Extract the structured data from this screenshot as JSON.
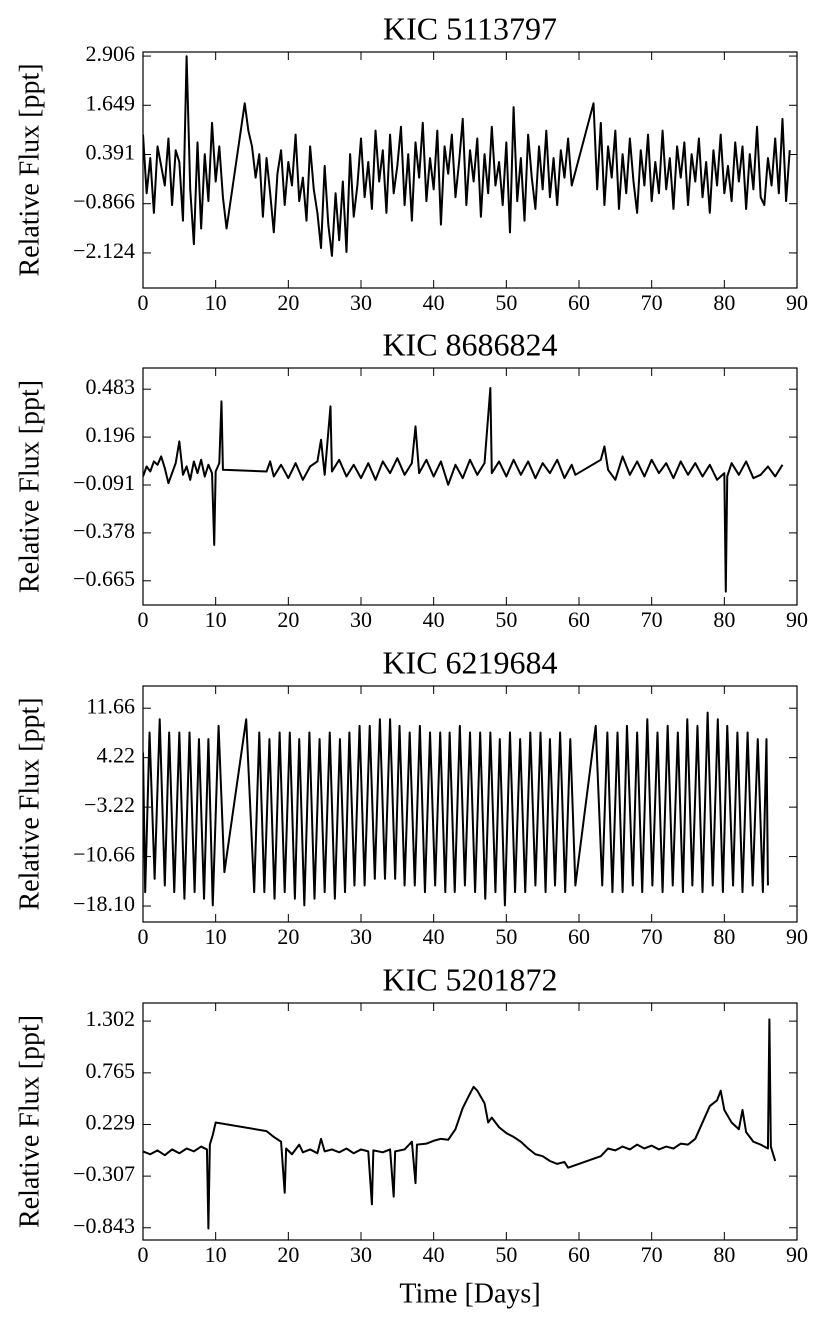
{
  "chart_data": [
    {
      "type": "line",
      "title": "KIC 5113797",
      "y_label": "Relative Flux [ppt]",
      "color": "#000000",
      "xlim": [
        0,
        90
      ],
      "xticks": [
        0,
        10,
        20,
        30,
        40,
        50,
        60,
        70,
        80,
        90
      ],
      "ylim": [
        -3.02,
        3.01
      ],
      "yticks": [
        2.906,
        1.649,
        0.391,
        {
          "value": -0.866,
          "label": "−0.866"
        },
        {
          "value": -2.124,
          "label": "−2.124"
        }
      ],
      "x": [
        0,
        0.5,
        1,
        1.5,
        2,
        2.5,
        3,
        3.5,
        4,
        4.5,
        5,
        5.5,
        6,
        6.5,
        7,
        7.5,
        8,
        8.5,
        9,
        9.5,
        10,
        10.5,
        11,
        11.5,
        14,
        14.5,
        15,
        15.5,
        16,
        16.5,
        17,
        17.5,
        18,
        18.5,
        19,
        19.5,
        20,
        20.5,
        21,
        21.5,
        22,
        22.5,
        23,
        23.5,
        24,
        24.5,
        25,
        25.5,
        26,
        26.5,
        27,
        27.5,
        28,
        28.5,
        29,
        29.5,
        30,
        30.5,
        31,
        31.5,
        32,
        32.5,
        33,
        33.5,
        34,
        34.5,
        35,
        35.5,
        36,
        36.5,
        37,
        37.5,
        38,
        38.5,
        39,
        39.5,
        40,
        40.5,
        41,
        41.5,
        42,
        42.5,
        43,
        43.5,
        44,
        44.5,
        45,
        45.5,
        46,
        46.5,
        47,
        47.5,
        48,
        48.5,
        49,
        49.5,
        50,
        50.5,
        51,
        51.5,
        52,
        52.5,
        53,
        53.5,
        54,
        54.5,
        55,
        55.5,
        56,
        56.5,
        57,
        57.5,
        58,
        58.5,
        59,
        62,
        62.5,
        63,
        63.5,
        64,
        64.5,
        65,
        65.5,
        66,
        66.5,
        67,
        67.5,
        68,
        68.5,
        69,
        69.5,
        70,
        70.5,
        71,
        71.5,
        72,
        72.5,
        73,
        73.5,
        74,
        74.5,
        75,
        75.5,
        76,
        76.5,
        77,
        77.5,
        78,
        78.5,
        79,
        79.5,
        80,
        80.5,
        81,
        81.5,
        82,
        82.5,
        83,
        83.5,
        84,
        84.5,
        85,
        85.5,
        86,
        86.5,
        87,
        87.5,
        88,
        88.5,
        89
      ],
      "values": [
        0.9,
        -0.6,
        0.3,
        -1.1,
        0.6,
        0.1,
        -0.4,
        0.8,
        -0.9,
        0.5,
        0.2,
        -1.3,
        2.9,
        -0.5,
        -1.9,
        0.7,
        -1.5,
        0.4,
        -0.8,
        1.2,
        -0.3,
        0.6,
        -0.7,
        -1.5,
        1.7,
        1.0,
        0.6,
        -0.2,
        0.4,
        -1.2,
        0.3,
        -0.6,
        -1.6,
        -0.1,
        0.5,
        -0.9,
        0.2,
        -0.4,
        0.9,
        -0.8,
        -0.2,
        -1.3,
        0.6,
        -0.5,
        -1.1,
        -2.0,
        0.1,
        -1.4,
        -2.2,
        -0.6,
        -1.8,
        -0.3,
        -2.1,
        0.4,
        -1.2,
        -0.4,
        0.8,
        -0.7,
        0.2,
        -1.0,
        1.0,
        -0.3,
        0.5,
        -1.1,
        0.9,
        -0.6,
        0.1,
        1.1,
        -0.9,
        0.4,
        -1.3,
        0.7,
        -0.2,
        1.2,
        -0.8,
        0.3,
        -0.5,
        1.0,
        -1.4,
        0.6,
        -0.1,
        0.9,
        -0.7,
        0.2,
        1.3,
        -0.9,
        0.5,
        -0.3,
        0.8,
        -1.2,
        0.4,
        -0.6,
        1.1,
        -0.4,
        0.2,
        -0.9,
        0.7,
        -1.6,
        1.6,
        -0.8,
        0.3,
        -1.3,
        0.9,
        -0.2,
        -1.0,
        0.6,
        -0.5,
        1.0,
        -0.7,
        0.3,
        -0.9,
        0.5,
        -0.2,
        0.8,
        -0.4,
        1.7,
        -0.5,
        1.2,
        -0.9,
        0.6,
        -0.2,
        1.0,
        -1.0,
        0.4,
        -0.6,
        0.8,
        -0.3,
        -1.1,
        0.5,
        -0.4,
        0.9,
        -0.8,
        0.2,
        -0.6,
        1.0,
        -0.5,
        0.3,
        -1.0,
        0.6,
        -0.2,
        0.7,
        -0.9,
        0.4,
        -0.3,
        0.8,
        -0.7,
        0.2,
        -1.1,
        0.5,
        -0.4,
        0.9,
        -0.6,
        0.1,
        -0.8,
        0.7,
        -0.3,
        0.6,
        -1.0,
        0.4,
        -0.5,
        1.1,
        -0.7,
        -0.9,
        0.3,
        -0.4,
        0.8,
        -0.6,
        1.3,
        -0.8,
        0.5
      ]
    },
    {
      "type": "line",
      "title": "KIC 8686824",
      "y_label": "Relative Flux [ppt]",
      "color": "#000000",
      "xlim": [
        0,
        90
      ],
      "xticks": [
        0,
        10,
        20,
        30,
        40,
        50,
        60,
        70,
        80,
        90
      ],
      "ylim": [
        -0.81,
        0.61
      ],
      "yticks": [
        0.483,
        0.196,
        {
          "value": -0.091,
          "label": "−0.091"
        },
        {
          "value": -0.378,
          "label": "−0.378"
        },
        {
          "value": -0.665,
          "label": "−0.665"
        }
      ],
      "x": [
        0,
        0.5,
        1,
        1.5,
        2,
        2.5,
        3,
        3.5,
        4,
        4.5,
        5,
        5.5,
        6,
        6.5,
        7,
        7.5,
        8,
        8.5,
        9,
        9.5,
        9.8,
        10,
        10.5,
        10.8,
        11,
        17,
        17.5,
        18,
        19,
        20,
        21,
        22,
        23,
        24,
        24.5,
        25,
        25.8,
        26,
        27,
        28,
        29,
        30,
        31,
        32,
        33,
        34,
        35,
        36,
        37,
        37.5,
        38,
        39,
        40,
        41,
        42,
        43,
        44,
        45,
        46,
        47,
        47.8,
        48,
        49,
        50,
        51,
        52,
        53,
        54,
        55,
        56,
        57,
        58,
        59,
        59.5,
        63,
        63.5,
        64,
        65,
        66,
        67,
        68,
        69,
        70,
        71,
        72,
        73,
        74,
        75,
        76,
        77,
        78,
        79,
        80,
        80.2,
        80.4,
        81,
        82,
        83,
        84,
        85,
        86,
        87,
        88
      ],
      "values": [
        -0.04,
        0.02,
        -0.01,
        0.05,
        0.03,
        0.08,
        0.01,
        -0.08,
        -0.02,
        0.04,
        0.17,
        -0.03,
        0.02,
        -0.06,
        0.05,
        -0.02,
        0.06,
        -0.04,
        0.03,
        -0.02,
        -0.45,
        -0.01,
        0.04,
        0.41,
        0.0,
        -0.01,
        0.05,
        -0.04,
        0.03,
        -0.05,
        0.04,
        -0.06,
        0.02,
        0.05,
        0.18,
        -0.03,
        0.38,
        -0.01,
        0.06,
        -0.04,
        0.03,
        -0.05,
        0.04,
        -0.06,
        0.05,
        -0.02,
        0.07,
        -0.03,
        0.04,
        0.26,
        -0.02,
        0.06,
        -0.04,
        0.05,
        -0.09,
        0.03,
        -0.05,
        0.06,
        -0.03,
        0.04,
        0.49,
        -0.02,
        0.05,
        -0.04,
        0.06,
        -0.03,
        0.05,
        -0.05,
        0.04,
        -0.02,
        0.06,
        -0.05,
        0.03,
        -0.03,
        0.06,
        0.14,
        0.0,
        -0.06,
        0.08,
        -0.03,
        0.05,
        -0.04,
        0.06,
        -0.02,
        0.04,
        -0.05,
        0.05,
        -0.03,
        0.04,
        -0.04,
        0.03,
        -0.06,
        -0.02,
        -0.73,
        -0.04,
        0.04,
        -0.03,
        0.05,
        -0.05,
        -0.03,
        0.02,
        -0.04,
        0.03
      ]
    },
    {
      "type": "line",
      "title": "KIC 6219684",
      "y_label": "Relative Flux [ppt]",
      "color": "#000000",
      "xlim": [
        0,
        90
      ],
      "xticks": [
        0,
        10,
        20,
        30,
        40,
        50,
        60,
        70,
        80,
        90
      ],
      "ylim": [
        -20.5,
        15.0
      ],
      "yticks": [
        11.66,
        4.22,
        {
          "value": -3.22,
          "label": "−3.22"
        },
        {
          "value": -10.66,
          "label": "−10.66"
        },
        {
          "value": -18.1,
          "label": "−18.10"
        }
      ],
      "x": [
        0,
        0.3,
        0.9,
        1.6,
        2.3,
        3.0,
        3.6,
        4.3,
        5.0,
        5.7,
        6.4,
        7.1,
        7.7,
        8.4,
        9.0,
        9.6,
        10.4,
        11.2,
        14.2,
        15.3,
        16.0,
        16.7,
        17.4,
        18.1,
        18.8,
        19.5,
        20.2,
        20.9,
        21.5,
        22.2,
        22.9,
        23.6,
        24.3,
        25.0,
        25.7,
        26.4,
        27.1,
        27.8,
        28.4,
        29.1,
        29.8,
        30.5,
        31.2,
        31.9,
        32.6,
        33.3,
        34.0,
        34.7,
        35.3,
        36.0,
        36.7,
        37.4,
        38.1,
        38.8,
        39.5,
        40.2,
        40.9,
        41.6,
        42.2,
        42.9,
        43.6,
        44.3,
        45.0,
        45.7,
        46.4,
        47.1,
        47.8,
        48.5,
        49.1,
        49.8,
        50.5,
        51.2,
        51.9,
        52.6,
        53.3,
        54.0,
        54.7,
        55.4,
        56.0,
        56.7,
        57.4,
        58.1,
        58.8,
        59.5,
        62.3,
        63.2,
        63.9,
        64.6,
        65.3,
        66.0,
        66.6,
        67.4,
        68.0,
        68.7,
        69.4,
        70.1,
        70.8,
        71.5,
        72.2,
        72.9,
        73.6,
        74.3,
        74.9,
        75.6,
        76.3,
        77.0,
        77.7,
        78.4,
        79.1,
        79.8,
        80.4,
        81.2,
        81.8,
        82.5,
        83.2,
        83.9,
        84.6,
        85.3,
        85.8,
        86.0
      ],
      "values": [
        5,
        -16,
        8,
        -14,
        10,
        -15,
        8,
        -16,
        8,
        -17,
        8,
        -16,
        7,
        -17,
        7,
        -18,
        9,
        -13,
        10,
        -16,
        8,
        -16,
        7,
        -17,
        8,
        -16,
        8,
        -17,
        7,
        -18,
        8,
        -17,
        7,
        -16,
        8,
        -17,
        7,
        -16,
        8,
        -15,
        9,
        -15,
        9,
        -14,
        10,
        -14,
        10,
        -14,
        9,
        -15,
        8,
        -15,
        9,
        -16,
        8,
        -15,
        8,
        -16,
        8,
        -16,
        9,
        -15,
        8,
        -16,
        8,
        -17,
        8,
        -16,
        7,
        -18,
        8,
        -16,
        7,
        -16,
        8,
        -15,
        8,
        -16,
        7,
        -15,
        8,
        -16,
        7,
        -15,
        9,
        -15,
        8,
        -16,
        8,
        -16,
        9,
        -15,
        8,
        -16,
        10,
        -15,
        8,
        -16,
        9,
        -15,
        8,
        -16,
        10,
        -15,
        9,
        -16,
        11,
        -15,
        10,
        -16,
        9,
        -15,
        8,
        -16,
        8,
        -15,
        7,
        -16,
        7,
        -15
      ]
    },
    {
      "type": "line",
      "title": "KIC 5201872",
      "y_label": "Relative Flux [ppt]",
      "x_label": "Time [Days]",
      "color": "#000000",
      "xlim": [
        0,
        90
      ],
      "xticks": [
        0,
        10,
        20,
        30,
        40,
        50,
        60,
        70,
        80,
        90
      ],
      "ylim": [
        -0.97,
        1.49
      ],
      "yticks": [
        1.302,
        0.765,
        0.229,
        {
          "value": -0.307,
          "label": "−0.307"
        },
        {
          "value": -0.843,
          "label": "−0.843"
        }
      ],
      "x": [
        0,
        1,
        2,
        3,
        4,
        5,
        6,
        7,
        8,
        8.8,
        9.0,
        9.2,
        9.6,
        10,
        17,
        18,
        19,
        19.5,
        19.7,
        20.5,
        21.5,
        22,
        23,
        24,
        24.5,
        25,
        26,
        27,
        28,
        29,
        30,
        31,
        31.5,
        31.7,
        33,
        34,
        34.5,
        34.7,
        36,
        37,
        37.5,
        37.7,
        39,
        40,
        41,
        42,
        43,
        44,
        45,
        45.5,
        46,
        47,
        47.5,
        48,
        49,
        50,
        51,
        52,
        53,
        54,
        55,
        56,
        57,
        58,
        58.5,
        63,
        64,
        65,
        66,
        67,
        68,
        69,
        70,
        71,
        72,
        73,
        74,
        75,
        76,
        77,
        78,
        79,
        79.5,
        80,
        81,
        82,
        82.5,
        83,
        84,
        85,
        86,
        86.2,
        86.4,
        87
      ],
      "values": [
        -0.05,
        -0.08,
        -0.04,
        -0.09,
        -0.03,
        -0.07,
        -0.02,
        -0.05,
        0.0,
        -0.03,
        -0.85,
        0.02,
        0.12,
        0.25,
        0.16,
        0.1,
        0.05,
        -0.48,
        -0.02,
        -0.08,
        0.02,
        -0.06,
        -0.03,
        -0.07,
        0.08,
        -0.05,
        -0.03,
        -0.06,
        -0.02,
        -0.07,
        -0.03,
        -0.05,
        -0.6,
        -0.04,
        -0.06,
        -0.03,
        -0.52,
        -0.05,
        -0.03,
        0.05,
        -0.38,
        0.02,
        0.03,
        0.06,
        0.08,
        0.07,
        0.18,
        0.4,
        0.55,
        0.62,
        0.58,
        0.45,
        0.25,
        0.3,
        0.2,
        0.14,
        0.1,
        0.05,
        -0.02,
        -0.08,
        -0.1,
        -0.15,
        -0.18,
        -0.16,
        -0.22,
        -0.1,
        -0.02,
        -0.04,
        0.0,
        -0.03,
        0.02,
        -0.02,
        0.01,
        -0.03,
        0.0,
        -0.02,
        0.03,
        0.02,
        0.08,
        0.25,
        0.42,
        0.48,
        0.58,
        0.38,
        0.25,
        0.18,
        0.38,
        0.15,
        0.05,
        0.02,
        -0.02,
        1.32,
        0.0,
        -0.15
      ]
    }
  ]
}
